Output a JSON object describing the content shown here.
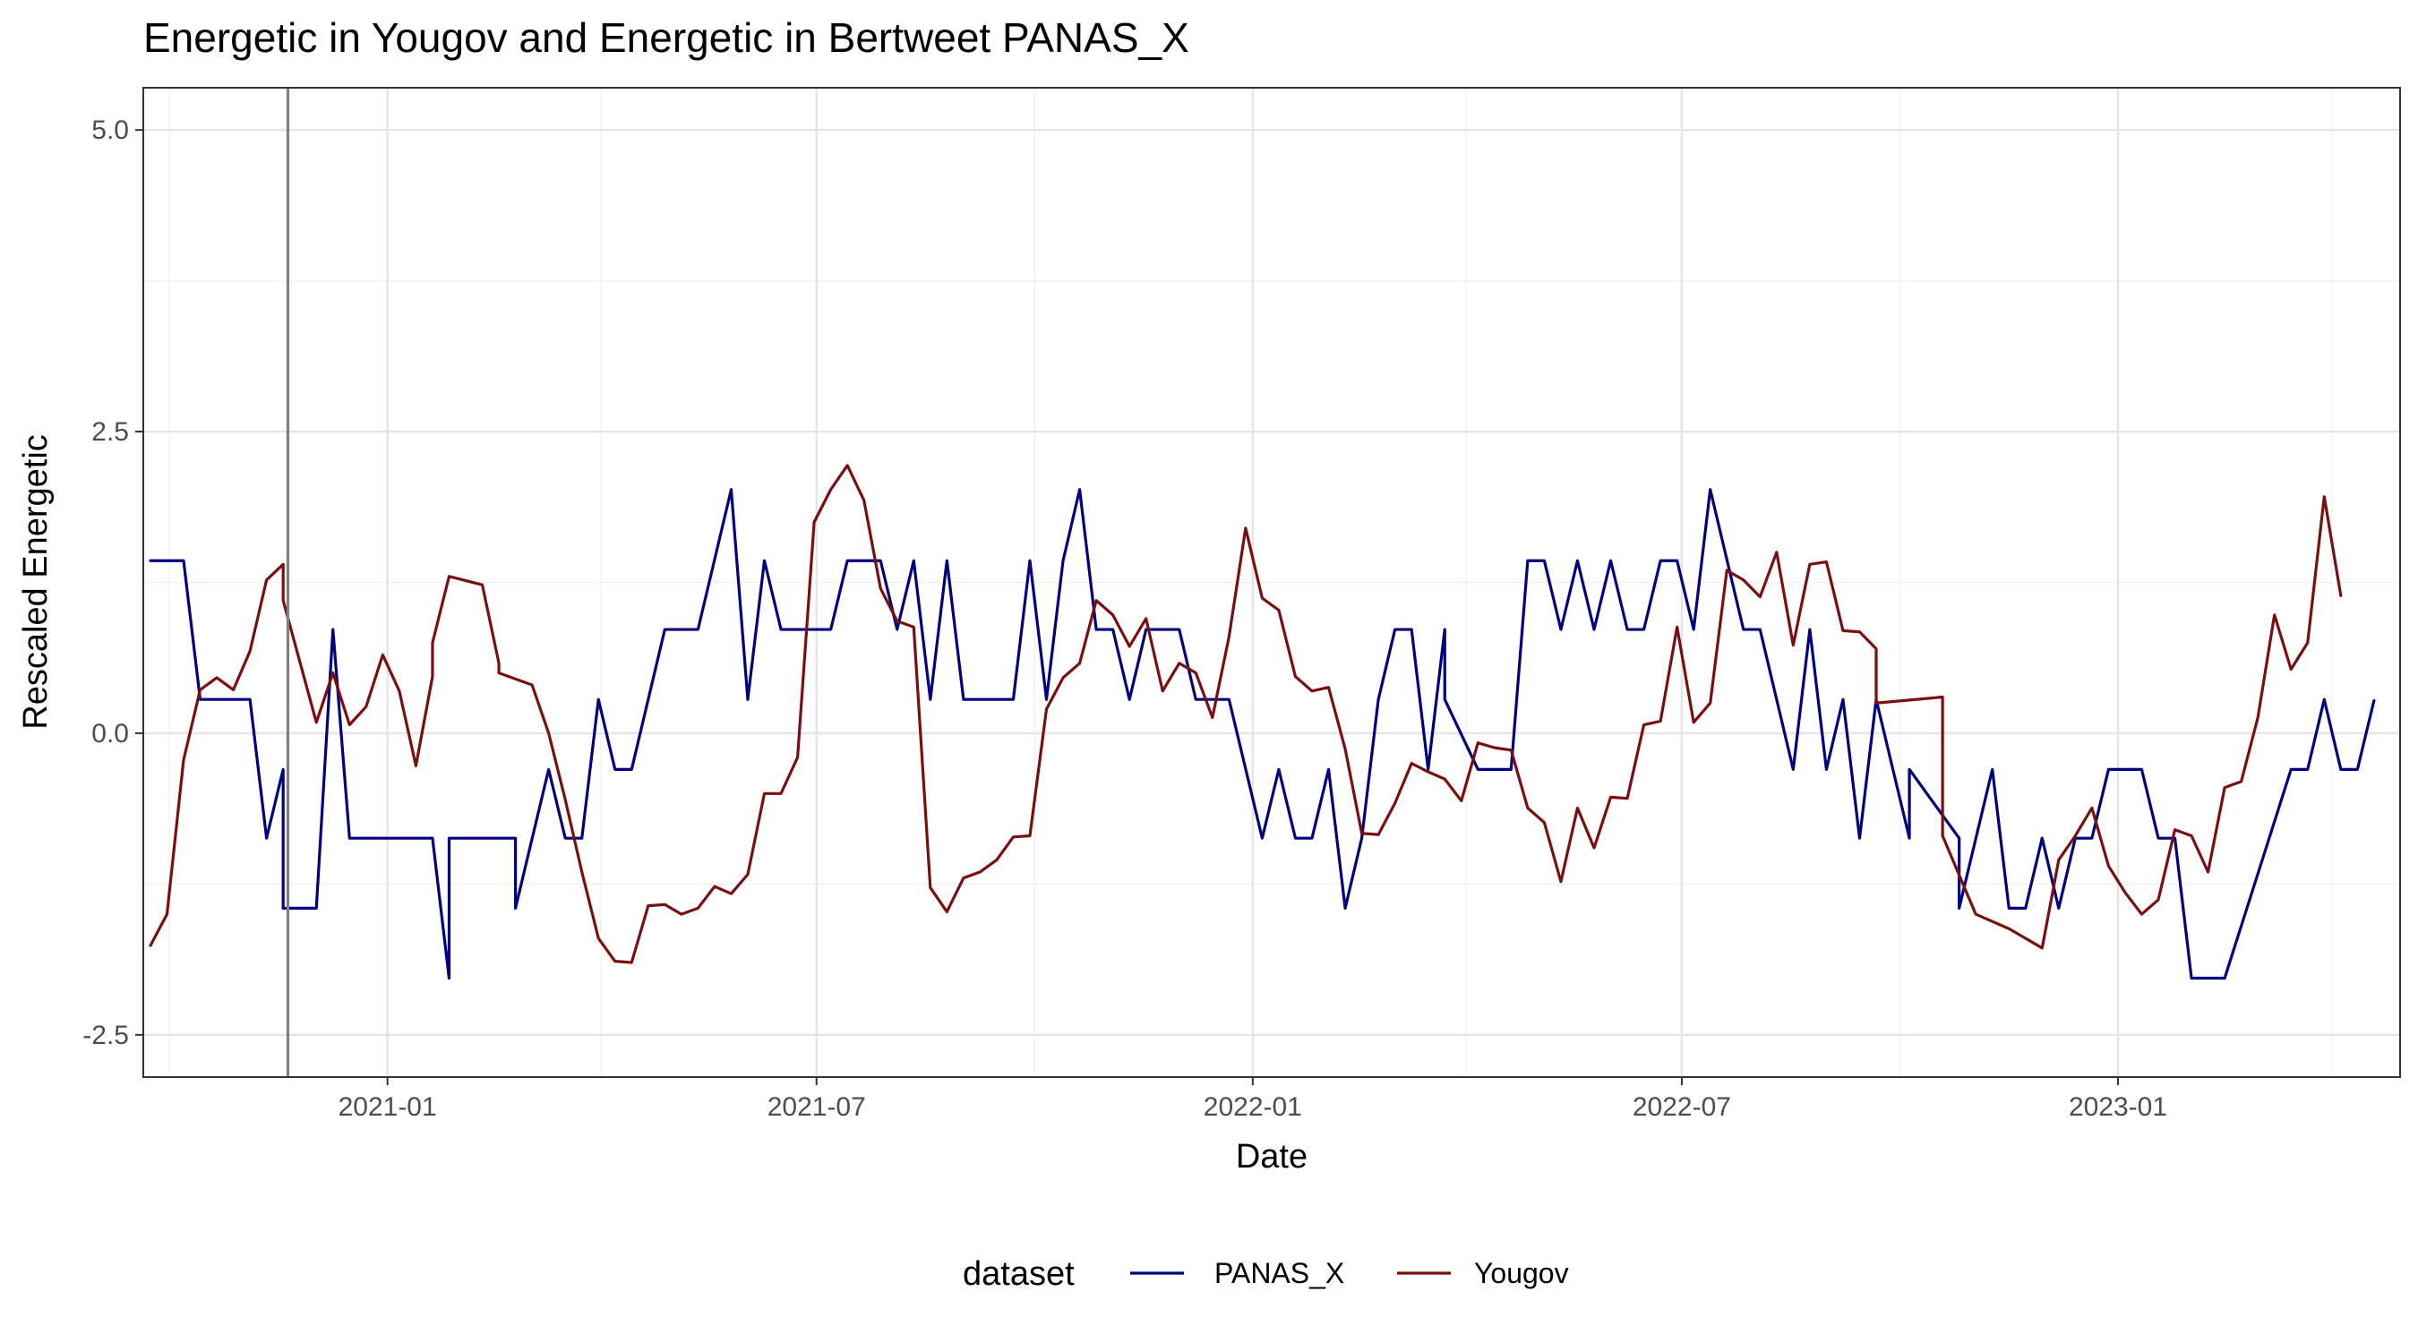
{
  "chart_data": {
    "type": "line",
    "title": "Energetic  in Yougov and  Energetic  in Bertweet   PANAS_X",
    "xlabel": "Date",
    "ylabel": "Rescaled  Energetic",
    "xlim": [
      "2020-09-20",
      "2023-04-30"
    ],
    "ylim": [
      -2.85,
      5.35
    ],
    "y_ticks": [
      5.0,
      2.5,
      0.0,
      -2.5
    ],
    "y_tick_labels": [
      "5.0",
      "2.5",
      "0.0",
      "-2.5"
    ],
    "x_ticks": [
      "2021-01-01",
      "2021-07-01",
      "2022-01-01",
      "2022-07-01",
      "2023-01-01"
    ],
    "x_tick_labels": [
      "2021-01",
      "2021-07",
      "2022-01",
      "2022-07",
      "2023-01"
    ],
    "x_minor_ticks": [
      "2020-10-01",
      "2021-04-01",
      "2021-10-01",
      "2022-04-01",
      "2022-10-01",
      "2023-04-01"
    ],
    "grid": true,
    "vline": {
      "x": "2020-11-20"
    },
    "legend": {
      "title": "dataset",
      "position": "bottom"
    },
    "series": [
      {
        "name": "PANAS_X",
        "color": "#000080",
        "points": [
          [
            "2020-09-23",
            1.43
          ],
          [
            "2020-10-07",
            1.43
          ],
          [
            "2020-10-14",
            0.28
          ],
          [
            "2020-11-04",
            0.28
          ],
          [
            "2020-11-11",
            -0.87
          ],
          [
            "2020-11-18",
            -0.3
          ],
          [
            "2020-11-18",
            -1.45
          ],
          [
            "2020-12-02",
            -1.45
          ],
          [
            "2020-12-09",
            0.86
          ],
          [
            "2020-12-16",
            -0.87
          ],
          [
            "2020-12-23",
            -0.87
          ],
          [
            "2021-01-20",
            -0.87
          ],
          [
            "2021-01-27",
            -2.03
          ],
          [
            "2021-01-27",
            -0.87
          ],
          [
            "2021-02-24",
            -0.87
          ],
          [
            "2021-02-24",
            -1.45
          ],
          [
            "2021-03-10",
            -0.3
          ],
          [
            "2021-03-17",
            -0.87
          ],
          [
            "2021-03-24",
            -0.87
          ],
          [
            "2021-03-31",
            0.28
          ],
          [
            "2021-04-07",
            -0.3
          ],
          [
            "2021-04-14",
            -0.3
          ],
          [
            "2021-04-28",
            0.86
          ],
          [
            "2021-05-12",
            0.86
          ],
          [
            "2021-05-26",
            2.02
          ],
          [
            "2021-06-02",
            0.28
          ],
          [
            "2021-06-09",
            1.43
          ],
          [
            "2021-06-16",
            0.86
          ],
          [
            "2021-07-07",
            0.86
          ],
          [
            "2021-07-14",
            1.43
          ],
          [
            "2021-07-28",
            1.43
          ],
          [
            "2021-08-04",
            0.86
          ],
          [
            "2021-08-11",
            1.43
          ],
          [
            "2021-08-18",
            0.28
          ],
          [
            "2021-08-25",
            1.43
          ],
          [
            "2021-09-01",
            0.28
          ],
          [
            "2021-09-22",
            0.28
          ],
          [
            "2021-09-29",
            1.43
          ],
          [
            "2021-10-06",
            0.28
          ],
          [
            "2021-10-13",
            1.43
          ],
          [
            "2021-10-20",
            2.02
          ],
          [
            "2021-10-27",
            0.86
          ],
          [
            "2021-11-03",
            0.86
          ],
          [
            "2021-11-10",
            0.28
          ],
          [
            "2021-11-17",
            0.86
          ],
          [
            "2021-12-01",
            0.86
          ],
          [
            "2021-12-08",
            0.28
          ],
          [
            "2021-12-22",
            0.28
          ],
          [
            "2022-01-05",
            -0.87
          ],
          [
            "2022-01-12",
            -0.3
          ],
          [
            "2022-01-19",
            -0.87
          ],
          [
            "2022-01-26",
            -0.87
          ],
          [
            "2022-02-02",
            -0.3
          ],
          [
            "2022-02-09",
            -1.45
          ],
          [
            "2022-02-16",
            -0.87
          ],
          [
            "2022-02-23",
            0.28
          ],
          [
            "2022-03-02",
            0.86
          ],
          [
            "2022-03-09",
            0.86
          ],
          [
            "2022-03-16",
            -0.3
          ],
          [
            "2022-03-23",
            0.86
          ],
          [
            "2022-03-23",
            0.28
          ],
          [
            "2022-04-06",
            -0.3
          ],
          [
            "2022-04-20",
            -0.3
          ],
          [
            "2022-04-27",
            1.43
          ],
          [
            "2022-05-04",
            1.43
          ],
          [
            "2022-05-11",
            0.86
          ],
          [
            "2022-05-18",
            1.43
          ],
          [
            "2022-05-25",
            0.86
          ],
          [
            "2022-06-01",
            1.43
          ],
          [
            "2022-06-08",
            0.86
          ],
          [
            "2022-06-15",
            0.86
          ],
          [
            "2022-06-22",
            1.43
          ],
          [
            "2022-06-29",
            1.43
          ],
          [
            "2022-07-06",
            0.86
          ],
          [
            "2022-07-13",
            2.02
          ],
          [
            "2022-07-27",
            0.86
          ],
          [
            "2022-08-03",
            0.86
          ],
          [
            "2022-08-17",
            -0.3
          ],
          [
            "2022-08-24",
            0.86
          ],
          [
            "2022-08-31",
            -0.3
          ],
          [
            "2022-09-07",
            0.28
          ],
          [
            "2022-09-14",
            -0.87
          ],
          [
            "2022-09-21",
            0.28
          ],
          [
            "2022-10-05",
            -0.87
          ],
          [
            "2022-10-05",
            -0.3
          ],
          [
            "2022-10-26",
            -0.87
          ],
          [
            "2022-10-26",
            -1.45
          ],
          [
            "2022-11-09",
            -0.3
          ],
          [
            "2022-11-16",
            -1.45
          ],
          [
            "2022-11-23",
            -1.45
          ],
          [
            "2022-11-30",
            -0.87
          ],
          [
            "2022-12-07",
            -1.45
          ],
          [
            "2022-12-14",
            -0.87
          ],
          [
            "2022-12-21",
            -0.87
          ],
          [
            "2022-12-28",
            -0.3
          ],
          [
            "2023-01-11",
            -0.3
          ],
          [
            "2023-01-18",
            -0.87
          ],
          [
            "2023-01-25",
            -0.87
          ],
          [
            "2023-02-01",
            -2.03
          ],
          [
            "2023-02-15",
            -2.03
          ],
          [
            "2023-03-15",
            -0.3
          ],
          [
            "2023-03-22",
            -0.3
          ],
          [
            "2023-03-29",
            0.28
          ],
          [
            "2023-04-05",
            -0.3
          ],
          [
            "2023-04-12",
            -0.3
          ],
          [
            "2023-04-19",
            0.27
          ]
        ]
      },
      {
        "name": "Yougov",
        "color": "#7b0f0f",
        "points": [
          [
            "2020-09-23",
            -1.76
          ],
          [
            "2020-09-30",
            -1.5
          ],
          [
            "2020-10-07",
            -0.22
          ],
          [
            "2020-10-14",
            0.36
          ],
          [
            "2020-10-21",
            0.46
          ],
          [
            "2020-10-28",
            0.36
          ],
          [
            "2020-11-04",
            0.68
          ],
          [
            "2020-11-11",
            1.27
          ],
          [
            "2020-11-18",
            1.4
          ],
          [
            "2020-11-18",
            1.1
          ],
          [
            "2020-12-02",
            0.09
          ],
          [
            "2020-12-09",
            0.5
          ],
          [
            "2020-12-16",
            0.07
          ],
          [
            "2020-12-23",
            0.22
          ],
          [
            "2020-12-30",
            0.65
          ],
          [
            "2021-01-06",
            0.35
          ],
          [
            "2021-01-13",
            -0.27
          ],
          [
            "2021-01-20",
            0.47
          ],
          [
            "2021-01-20",
            0.75
          ],
          [
            "2021-01-27",
            1.3
          ],
          [
            "2021-02-10",
            1.23
          ],
          [
            "2021-02-17",
            0.58
          ],
          [
            "2021-02-17",
            0.5
          ],
          [
            "2021-03-03",
            0.4
          ],
          [
            "2021-03-10",
            0.0
          ],
          [
            "2021-03-17",
            -0.55
          ],
          [
            "2021-03-24",
            -1.15
          ],
          [
            "2021-03-31",
            -1.7
          ],
          [
            "2021-04-07",
            -1.89
          ],
          [
            "2021-04-14",
            -1.9
          ],
          [
            "2021-04-21",
            -1.43
          ],
          [
            "2021-04-28",
            -1.42
          ],
          [
            "2021-05-05",
            -1.5
          ],
          [
            "2021-05-12",
            -1.45
          ],
          [
            "2021-05-19",
            -1.27
          ],
          [
            "2021-05-26",
            -1.33
          ],
          [
            "2021-06-02",
            -1.17
          ],
          [
            "2021-06-09",
            -0.5
          ],
          [
            "2021-06-16",
            -0.5
          ],
          [
            "2021-06-23",
            -0.2
          ],
          [
            "2021-06-30",
            1.75
          ],
          [
            "2021-07-07",
            2.02
          ],
          [
            "2021-07-14",
            2.22
          ],
          [
            "2021-07-21",
            1.93
          ],
          [
            "2021-07-28",
            1.2
          ],
          [
            "2021-08-04",
            0.93
          ],
          [
            "2021-08-11",
            0.88
          ],
          [
            "2021-08-18",
            -1.28
          ],
          [
            "2021-08-25",
            -1.48
          ],
          [
            "2021-09-01",
            -1.2
          ],
          [
            "2021-09-08",
            -1.15
          ],
          [
            "2021-09-15",
            -1.05
          ],
          [
            "2021-09-22",
            -0.86
          ],
          [
            "2021-09-29",
            -0.85
          ],
          [
            "2021-10-06",
            0.2
          ],
          [
            "2021-10-13",
            0.46
          ],
          [
            "2021-10-20",
            0.58
          ],
          [
            "2021-10-27",
            1.1
          ],
          [
            "2021-11-03",
            0.98
          ],
          [
            "2021-11-10",
            0.72
          ],
          [
            "2021-11-17",
            0.95
          ],
          [
            "2021-11-24",
            0.35
          ],
          [
            "2021-12-01",
            0.58
          ],
          [
            "2021-12-08",
            0.5
          ],
          [
            "2021-12-15",
            0.13
          ],
          [
            "2021-12-22",
            0.8
          ],
          [
            "2021-12-29",
            1.7
          ],
          [
            "2022-01-05",
            1.12
          ],
          [
            "2022-01-12",
            1.02
          ],
          [
            "2022-01-19",
            0.47
          ],
          [
            "2022-01-26",
            0.35
          ],
          [
            "2022-02-02",
            0.38
          ],
          [
            "2022-02-09",
            -0.13
          ],
          [
            "2022-02-16",
            -0.83
          ],
          [
            "2022-02-23",
            -0.84
          ],
          [
            "2022-03-02",
            -0.58
          ],
          [
            "2022-03-09",
            -0.25
          ],
          [
            "2022-03-16",
            -0.32
          ],
          [
            "2022-03-23",
            -0.38
          ],
          [
            "2022-03-30",
            -0.56
          ],
          [
            "2022-04-06",
            -0.08
          ],
          [
            "2022-04-13",
            -0.12
          ],
          [
            "2022-04-20",
            -0.14
          ],
          [
            "2022-04-27",
            -0.62
          ],
          [
            "2022-05-04",
            -0.74
          ],
          [
            "2022-05-11",
            -1.23
          ],
          [
            "2022-05-18",
            -0.62
          ],
          [
            "2022-05-25",
            -0.95
          ],
          [
            "2022-06-01",
            -0.53
          ],
          [
            "2022-06-08",
            -0.54
          ],
          [
            "2022-06-15",
            0.07
          ],
          [
            "2022-06-22",
            0.1
          ],
          [
            "2022-06-29",
            0.88
          ],
          [
            "2022-07-06",
            0.09
          ],
          [
            "2022-07-13",
            0.25
          ],
          [
            "2022-07-20",
            1.35
          ],
          [
            "2022-07-27",
            1.27
          ],
          [
            "2022-08-03",
            1.13
          ],
          [
            "2022-08-10",
            1.5
          ],
          [
            "2022-08-17",
            0.73
          ],
          [
            "2022-08-24",
            1.4
          ],
          [
            "2022-08-31",
            1.42
          ],
          [
            "2022-09-07",
            0.85
          ],
          [
            "2022-09-14",
            0.84
          ],
          [
            "2022-09-21",
            0.7
          ],
          [
            "2022-09-21",
            0.25
          ],
          [
            "2022-10-19",
            0.3
          ],
          [
            "2022-10-19",
            -0.85
          ],
          [
            "2022-11-02",
            -1.5
          ],
          [
            "2022-11-09",
            -1.56
          ],
          [
            "2022-11-16",
            -1.62
          ],
          [
            "2022-11-23",
            -1.7
          ],
          [
            "2022-11-30",
            -1.78
          ],
          [
            "2022-12-07",
            -1.05
          ],
          [
            "2022-12-14",
            -0.85
          ],
          [
            "2022-12-21",
            -0.62
          ],
          [
            "2022-12-28",
            -1.1
          ],
          [
            "2023-01-04",
            -1.32
          ],
          [
            "2023-01-11",
            -1.5
          ],
          [
            "2023-01-18",
            -1.38
          ],
          [
            "2023-01-25",
            -0.8
          ],
          [
            "2023-02-01",
            -0.85
          ],
          [
            "2023-02-08",
            -1.15
          ],
          [
            "2023-02-15",
            -0.45
          ],
          [
            "2023-02-22",
            -0.4
          ],
          [
            "2023-03-01",
            0.13
          ],
          [
            "2023-03-08",
            0.98
          ],
          [
            "2023-03-15",
            0.53
          ],
          [
            "2023-03-22",
            0.75
          ],
          [
            "2023-03-29",
            1.96
          ],
          [
            "2023-04-05",
            1.14
          ]
        ]
      }
    ]
  }
}
